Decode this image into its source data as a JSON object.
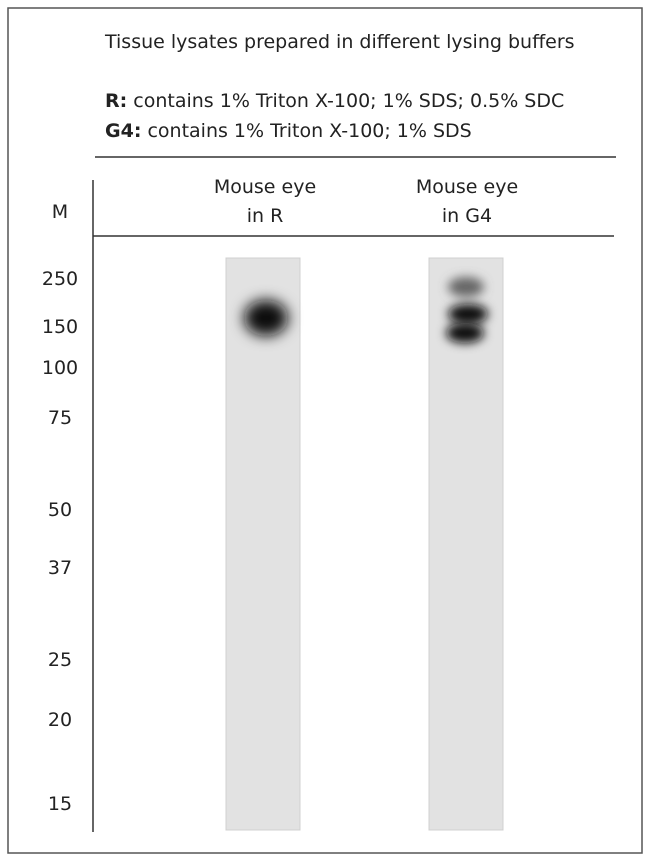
{
  "title": "Tissue lysates prepared in different lysing buffers",
  "buffers": [
    {
      "name": "R:",
      "text": "contains 1% Triton X-100; 1% SDS; 0.5% SDC"
    },
    {
      "name": "G4:",
      "text": "contains 1% Triton X-100; 1% SDS"
    }
  ],
  "marker_header": "M",
  "lanes": [
    {
      "lines": [
        "Mouse eye",
        "in R"
      ]
    },
    {
      "lines": [
        "Mouse eye",
        "in G4"
      ]
    }
  ],
  "markers": [
    "250",
    "150",
    "100",
    "75",
    "50",
    "37",
    "25",
    "20",
    "15"
  ]
}
